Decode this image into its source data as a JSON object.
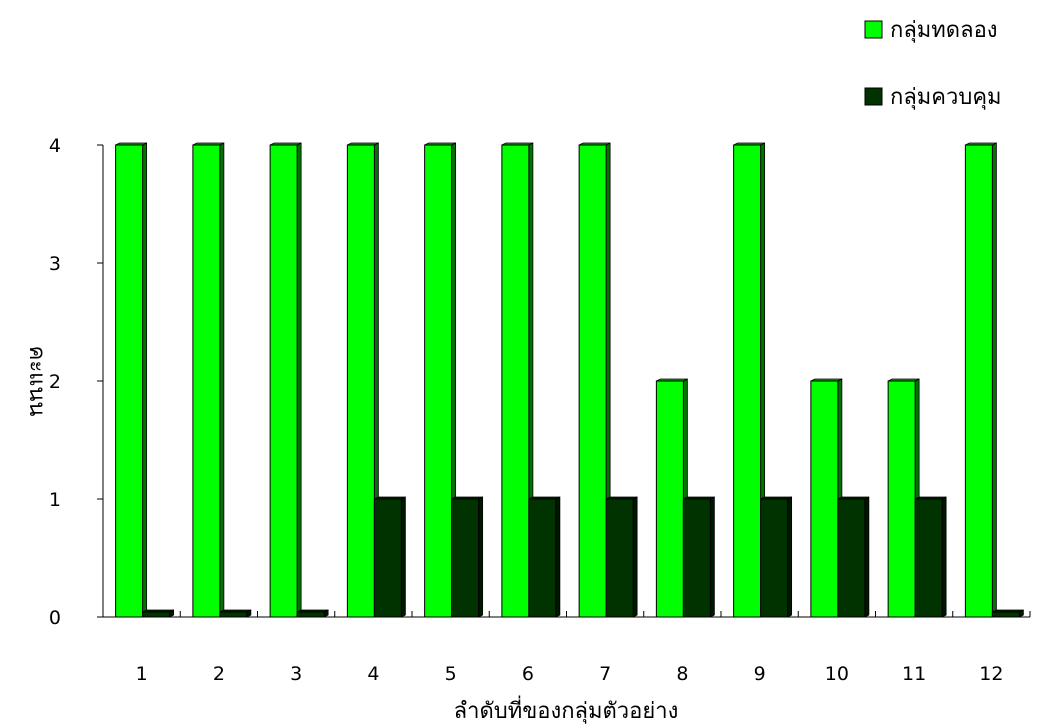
{
  "chart_data": {
    "type": "bar",
    "title": "",
    "xlabel": "ลำดับที่ของกลุ่มตัวอย่าง",
    "ylabel": "คะแนน",
    "categories": [
      "1",
      "2",
      "3",
      "4",
      "5",
      "6",
      "7",
      "8",
      "9",
      "10",
      "11",
      "12"
    ],
    "yticks": [
      "0",
      "1",
      "2",
      "3",
      "4"
    ],
    "ylim": [
      0,
      4
    ],
    "grid": false,
    "legend_position": "top-right",
    "series": [
      {
        "name": "กลุ่มทดลอง",
        "color": "#00ff00",
        "values": [
          4,
          4,
          4,
          4,
          4,
          4,
          4,
          2,
          4,
          2,
          2,
          4
        ]
      },
      {
        "name": "กลุ่มควบคุม",
        "color": "#003300",
        "values": [
          0,
          0,
          0,
          1,
          1,
          1,
          1,
          1,
          1,
          1,
          1,
          0
        ]
      }
    ]
  }
}
